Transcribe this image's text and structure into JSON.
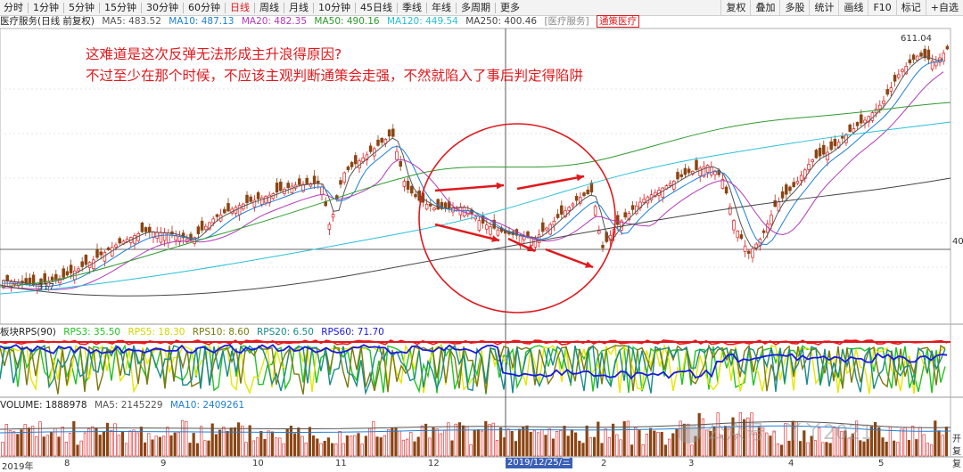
{
  "toolbar": {
    "periods": [
      "分时",
      "1分钟",
      "5分钟",
      "15分钟",
      "30分钟",
      "60分钟",
      "日线",
      "周线",
      "月线",
      "10分钟",
      "45日线",
      "季线",
      "年线",
      "多周期",
      "更多"
    ],
    "active_period": "日线",
    "right_buttons": [
      "复权",
      "叠加",
      "多股",
      "统计",
      "画线",
      "F10",
      "标记",
      "+自选"
    ]
  },
  "main_legend": {
    "title": "医疗服务(日线 前复权)",
    "ma5": "MA5: 483.52",
    "ma10": "MA10: 487.13",
    "ma20": "MA20: 482.35",
    "ma50": "MA50: 490.16",
    "ma120": "MA120: 449.54",
    "ma250": "MA250: 400.46",
    "tag1": "[医疗服务]",
    "tag2": "通策医疗"
  },
  "rps_legend": {
    "title": "板块RPS(90)",
    "rps3": "RPS3: 35.50",
    "rps5": "RPS5: 18.30",
    "rps10": "RPS10: 8.60",
    "rps20": "RPS20: 6.50",
    "rps60": "RPS60: 71.70"
  },
  "vol_legend": {
    "volume": "VOLUME: 1888978",
    "ma5": "MA5: 2145229",
    "ma10": "MA10: 2409261"
  },
  "annotation": {
    "line1": "这难道是这次反弹无法形成主升浪得原因?",
    "line2": "不过至少在那个时候，不应该主观判断通策会走强，不然就陷入了事后判定得陷阱"
  },
  "price_labels": {
    "high": "611.04",
    "low_marker": "317",
    "right_value": "40"
  },
  "x_axis": {
    "labels": [
      "2019年",
      "8",
      "9",
      "10",
      "11",
      "12",
      "2019/12/25/三",
      "2",
      "3",
      "4",
      "5"
    ]
  },
  "right_axis_labels": [
    "开",
    "复",
    "复"
  ],
  "watermark": "公众号 · 丫丫2021",
  "colors": {
    "up": "#e0191d",
    "down": "#8b4513",
    "ma5": "#555555",
    "ma10": "#1e7fd8",
    "ma20": "#b23ab8",
    "ma50": "#2e9a2e",
    "ma120": "#27c0d8",
    "ma250": "#444444",
    "rps3": "#22c322",
    "rps5": "#e6e600",
    "rps10": "#7a7a10",
    "rps20": "#1a8a8a",
    "rps60": "#1a1ae0"
  }
}
